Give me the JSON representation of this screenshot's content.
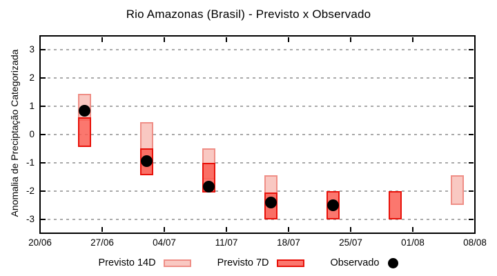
{
  "title": "Rio Amazonas (Brasil) - Previsto x Observado",
  "chart_data": {
    "type": "bar",
    "subtype": "floating-range-bars-with-scatter",
    "title": "Rio Amazonas (Brasil) - Previsto x Observado",
    "ylabel": "Anomalia de Preciptação Categorizada",
    "y_ticks": [
      3,
      2,
      1,
      0,
      -1,
      -2,
      -3
    ],
    "ylim": [
      -3.5,
      3.5
    ],
    "x_tick_labels": [
      "20/06",
      "27/06",
      "04/07",
      "11/07",
      "18/07",
      "25/07",
      "01/08",
      "08/08"
    ],
    "x_tick_days": [
      0,
      7,
      14,
      21,
      28,
      35,
      42,
      49
    ],
    "xlim_days": [
      0,
      49
    ],
    "grid": true,
    "legend_position": "bottom",
    "series": [
      {
        "name": "Previsto 14D",
        "type": "range-bar",
        "fill": "#f9c8c2",
        "border": "#ef8e86"
      },
      {
        "name": "Previsto 7D",
        "type": "range-bar",
        "fill": "#fa5f55",
        "fill_opacity": 0.85,
        "border": "#e81109"
      },
      {
        "name": "Observado",
        "type": "scatter",
        "color": "#000000"
      }
    ],
    "clusters": [
      {
        "date": "25/06",
        "day": 5,
        "previsto_14d": [
          0.5,
          1.45
        ],
        "previsto_7d": [
          -0.45,
          0.6
        ],
        "observado": 0.85
      },
      {
        "date": "02/07",
        "day": 12,
        "previsto_14d": [
          -1.45,
          0.45
        ],
        "previsto_7d": [
          -1.45,
          -0.5
        ],
        "observado": -0.95
      },
      {
        "date": "09/07",
        "day": 19,
        "previsto_14d": [
          -1.6,
          -0.5
        ],
        "previsto_7d": [
          -2.05,
          -1.0
        ],
        "observado": -1.85
      },
      {
        "date": "16/07",
        "day": 26,
        "previsto_14d": [
          -3.0,
          -1.45
        ],
        "previsto_7d": [
          -3.0,
          -2.05
        ],
        "observado": -2.4
      },
      {
        "date": "23/07",
        "day": 33,
        "previsto_14d": null,
        "previsto_7d": [
          -3.0,
          -2.0
        ],
        "observado": -2.5
      },
      {
        "date": "30/07",
        "day": 40,
        "previsto_14d": null,
        "previsto_7d": [
          -3.0,
          -2.0
        ],
        "observado": null
      },
      {
        "date": "06/08",
        "day": 47,
        "previsto_14d": [
          -2.5,
          -1.45
        ],
        "previsto_7d": null,
        "observado": null
      }
    ]
  }
}
